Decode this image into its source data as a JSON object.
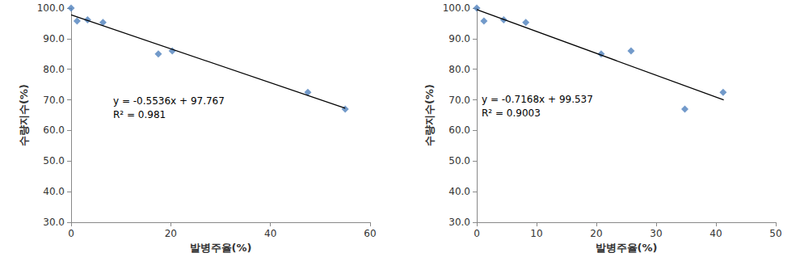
{
  "chart_data": [
    {
      "type": "scatter",
      "x_label": "발병주율(%)",
      "y_label": "수량지수(%)",
      "annotations": [
        "y = -0.5536x + 97.767",
        "R² = 0.981"
      ],
      "xlim": [
        0,
        60
      ],
      "xticks": [
        0,
        20,
        40,
        60
      ],
      "ylim": [
        30,
        100
      ],
      "yticks": [
        {
          "value": 30,
          "label": "30.0"
        },
        {
          "value": 40,
          "label": "40.0"
        },
        {
          "value": 50,
          "label": "50.0"
        },
        {
          "value": 60,
          "label": "60.0"
        },
        {
          "value": 70,
          "label": "70.0"
        },
        {
          "value": 80,
          "label": "80.0"
        },
        {
          "value": 90,
          "label": "90.0"
        },
        {
          "value": 100,
          "label": "100.0"
        }
      ],
      "grid": false,
      "series": [
        {
          "type": "scatter",
          "marker": "diamond",
          "color": "#4f81bd",
          "x": [
            0,
            1.2,
            3.3,
            6.4,
            17.5,
            20.3,
            47.5,
            55
          ],
          "values": [
            100,
            95.8,
            96.2,
            95.3,
            85,
            86,
            72.5,
            67
          ]
        },
        {
          "type": "line",
          "color": "#000000",
          "x": [
            0,
            55
          ],
          "values": [
            97.8,
            67.3
          ]
        }
      ]
    },
    {
      "type": "scatter",
      "x_label": "발병주율(%)",
      "y_label": "수량지수(%)",
      "annotations": [
        "y = -0.7168x + 99.537",
        "R² = 0.9003"
      ],
      "xlim": [
        0,
        50
      ],
      "xticks": [
        0,
        10,
        20,
        30,
        40,
        50
      ],
      "ylim": [
        30,
        100
      ],
      "yticks": [
        {
          "value": 30,
          "label": "30.0"
        },
        {
          "value": 40,
          "label": "40.0"
        },
        {
          "value": 50,
          "label": "50.0"
        },
        {
          "value": 60,
          "label": "60.0"
        },
        {
          "value": 70,
          "label": "70.0"
        },
        {
          "value": 80,
          "label": "80.0"
        },
        {
          "value": 90,
          "label": "90.0"
        },
        {
          "value": 100,
          "label": "100.0"
        }
      ],
      "grid": false,
      "series": [
        {
          "type": "scatter",
          "marker": "diamond",
          "color": "#4f81bd",
          "x": [
            0,
            1.2,
            4.5,
            8.2,
            20.8,
            25.8,
            34.8,
            41.2
          ],
          "values": [
            100,
            95.8,
            96.2,
            95.3,
            85,
            86,
            67,
            72.5
          ]
        },
        {
          "type": "line",
          "color": "#000000",
          "x": [
            0,
            41.3
          ],
          "values": [
            99.5,
            70.0
          ]
        }
      ]
    }
  ]
}
